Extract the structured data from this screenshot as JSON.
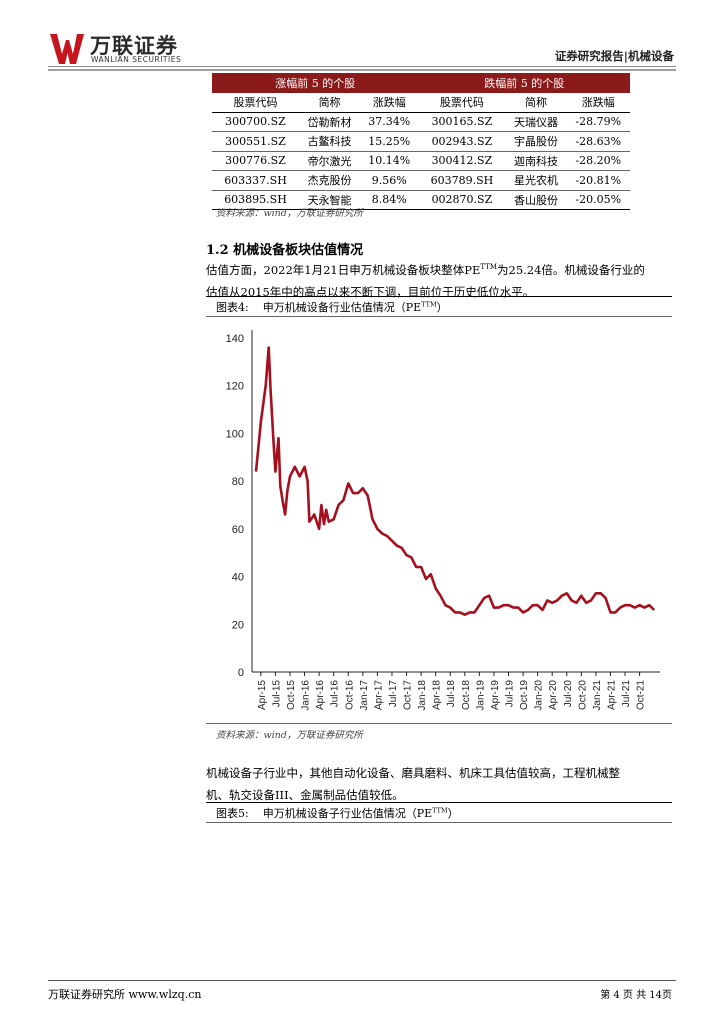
{
  "header": {
    "logo_cn": "万联证券",
    "logo_en": "WANLIAN SECURITIES",
    "report_label": "证券研究报告|机械设备"
  },
  "table": {
    "gainers_title": "涨幅前 5 的个股",
    "losers_title": "跌幅前 5 的个股",
    "columns": [
      "股票代码",
      "简称",
      "涨跌幅",
      "股票代码",
      "简称",
      "涨跌幅"
    ],
    "rows": [
      [
        "300700.SZ",
        "岱勒新材",
        "37.34%",
        "300165.SZ",
        "天瑞仪器",
        "-28.79%"
      ],
      [
        "300551.SZ",
        "古鳌科技",
        "15.25%",
        "002943.SZ",
        "宇晶股份",
        "-28.63%"
      ],
      [
        "300776.SZ",
        "帝尔激光",
        "10.14%",
        "300412.SZ",
        "迦南科技",
        "-28.20%"
      ],
      [
        "603337.SH",
        "杰克股份",
        "9.56%",
        "603789.SH",
        "星光农机",
        "-20.81%"
      ],
      [
        "603895.SH",
        "天永智能",
        "8.84%",
        "002870.SZ",
        "香山股份",
        "-20.05%"
      ]
    ],
    "source": "资料来源：wind，万联证券研究所"
  },
  "section": {
    "number": "1.2",
    "title": "机械设备板块估值情况",
    "para1_line1": "估值方面，2022年1月21日申万机械设备板块整体PE",
    "para1_sup": "TTM",
    "para1_line1_end": "为25.24倍。机械设备行业的",
    "para1_line2": "估值从2015年中的高点以来不断下调，目前位于历史低位水平。"
  },
  "figure4": {
    "label": "图表4:",
    "caption": "申万机械设备行业估值情况（PE",
    "caption_sup": "TTM",
    "caption_end": "）",
    "source": "资料来源：wind，万联证券研究所"
  },
  "para2": {
    "line1": "机械设备子行业中，其他自动化设备、磨具磨料、机床工具估值较高，工程机械整",
    "line2": "机、轨交设备III、金属制品估值较低。"
  },
  "figure5": {
    "label": "图表5:",
    "caption": "申万机械设备子行业估值情况（PE",
    "caption_sup": "TTM",
    "caption_end": "）"
  },
  "footer": {
    "left": "万联证券研究所 www.wlzq.cn",
    "right": "第 4 页 共 14页"
  },
  "chart_data": {
    "type": "line",
    "title": "",
    "xlabel": "",
    "ylabel": "",
    "ylim": [
      0,
      140
    ],
    "yticks": [
      0,
      20,
      40,
      60,
      80,
      100,
      120,
      140
    ],
    "xticks": [
      "Apr-15",
      "Jul-15",
      "Oct-15",
      "Jan-16",
      "Apr-16",
      "Jul-16",
      "Oct-16",
      "Jan-17",
      "Apr-17",
      "Jul-17",
      "Oct-17",
      "Jan-18",
      "Apr-18",
      "Jul-18",
      "Oct-18",
      "Jan-19",
      "Apr-19",
      "Jul-19",
      "Oct-19",
      "Jan-20",
      "Apr-20",
      "Jul-20",
      "Oct-20",
      "Jan-21",
      "Apr-21",
      "Jul-21",
      "Oct-21"
    ],
    "color": "#A50F1E",
    "series": [
      {
        "x": [
          "2015-03",
          "2015-04",
          "2015-05",
          "2015-05-20",
          "2015-06",
          "2015-06-20",
          "2015-07",
          "2015-07-20",
          "2015-08",
          "2015-08-15",
          "2015-09",
          "2015-09-15",
          "2015-10",
          "2015-11",
          "2015-12",
          "2016-01",
          "2016-01-20",
          "2016-02",
          "2016-03",
          "2016-04",
          "2016-04-15",
          "2016-05",
          "2016-05-15",
          "2016-06",
          "2016-07",
          "2016-08",
          "2016-09",
          "2016-10",
          "2016-11",
          "2016-12",
          "2017-01",
          "2017-02",
          "2017-03",
          "2017-04",
          "2017-05",
          "2017-06",
          "2017-07",
          "2017-08",
          "2017-09",
          "2017-10",
          "2017-11",
          "2017-12",
          "2018-01",
          "2018-02",
          "2018-03",
          "2018-04",
          "2018-05",
          "2018-06",
          "2018-07",
          "2018-08",
          "2018-09",
          "2018-10",
          "2018-11",
          "2018-12",
          "2019-01",
          "2019-02",
          "2019-03",
          "2019-04",
          "2019-05",
          "2019-06",
          "2019-07",
          "2019-08",
          "2019-09",
          "2019-10",
          "2019-11",
          "2019-12",
          "2020-01",
          "2020-02",
          "2020-03",
          "2020-04",
          "2020-05",
          "2020-06",
          "2020-07",
          "2020-08",
          "2020-09",
          "2020-10",
          "2020-11",
          "2020-12",
          "2021-01",
          "2021-02",
          "2021-03",
          "2021-04",
          "2021-05",
          "2021-06",
          "2021-07",
          "2021-08",
          "2021-09",
          "2021-10",
          "2021-11",
          "2021-12",
          "2022-01"
        ],
        "y": [
          84,
          105,
          120,
          136,
          118,
          96,
          84,
          98,
          78,
          72,
          66,
          76,
          82,
          86,
          82,
          86,
          80,
          63,
          66,
          60,
          70,
          62,
          68,
          63,
          64,
          70,
          72,
          79,
          75,
          75,
          77,
          74,
          64,
          60,
          58,
          57,
          55,
          53,
          52,
          49,
          48,
          44,
          44,
          39,
          41,
          35,
          32,
          28,
          27,
          25,
          25,
          24,
          25,
          25,
          28,
          31,
          32,
          27,
          27,
          28,
          28,
          27,
          27,
          25,
          26,
          28,
          28,
          26,
          30,
          29,
          30,
          32,
          33,
          30,
          29,
          32,
          29,
          30,
          33,
          33,
          31,
          25,
          25,
          27,
          28,
          28,
          27,
          28,
          27,
          28,
          26
        ]
      }
    ]
  }
}
